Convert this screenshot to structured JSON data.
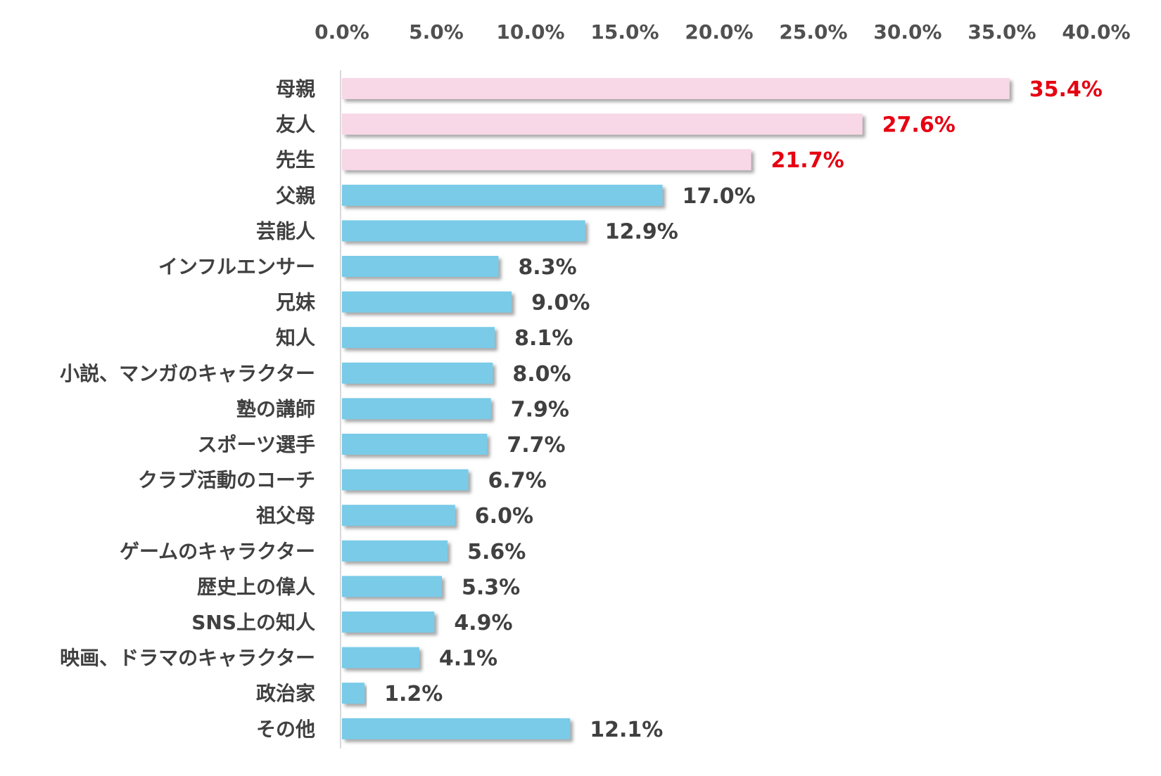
{
  "chart_data": {
    "type": "bar",
    "orientation": "horizontal",
    "categories": [
      "母親",
      "友人",
      "先生",
      "父親",
      "芸能人",
      "インフルエンサー",
      "兄妹",
      "知人",
      "小説、マンガのキャラクター",
      "塾の講師",
      "スポーツ選手",
      "クラブ活動のコーチ",
      "祖父母",
      "ゲームのキャラクター",
      "歴史上の偉人",
      "SNS上の知人",
      "映画、ドラマのキャラクター",
      "政治家",
      "その他"
    ],
    "values": [
      35.4,
      27.6,
      21.7,
      17.0,
      12.9,
      8.3,
      9.0,
      8.1,
      8.0,
      7.9,
      7.7,
      6.7,
      6.0,
      5.6,
      5.3,
      4.9,
      4.1,
      1.2,
      12.1
    ],
    "value_labels": [
      "35.4%",
      "27.6%",
      "21.7%",
      "17.0%",
      "12.9%",
      "8.3%",
      "9.0%",
      "8.1%",
      "8.0%",
      "7.9%",
      "7.7%",
      "6.7%",
      "6.0%",
      "5.6%",
      "5.3%",
      "4.9%",
      "4.1%",
      "1.2%",
      "12.1%"
    ],
    "highlighted_count": 3,
    "xlim": [
      0,
      40
    ],
    "x_ticks": [
      "0.0%",
      "5.0%",
      "10.0%",
      "15.0%",
      "20.0%",
      "25.0%",
      "30.0%",
      "35.0%",
      "40.0%"
    ],
    "axis_position": "top",
    "grid": false,
    "title": "",
    "xlabel": "",
    "ylabel": "",
    "colors": {
      "highlight_bar": "#f8d7e6",
      "normal_bar": "#79cbe8",
      "highlight_label": "#e60012",
      "normal_label": "#404040",
      "axis_line": "#d9d9d9",
      "shadow": "#9a9a9a"
    }
  }
}
